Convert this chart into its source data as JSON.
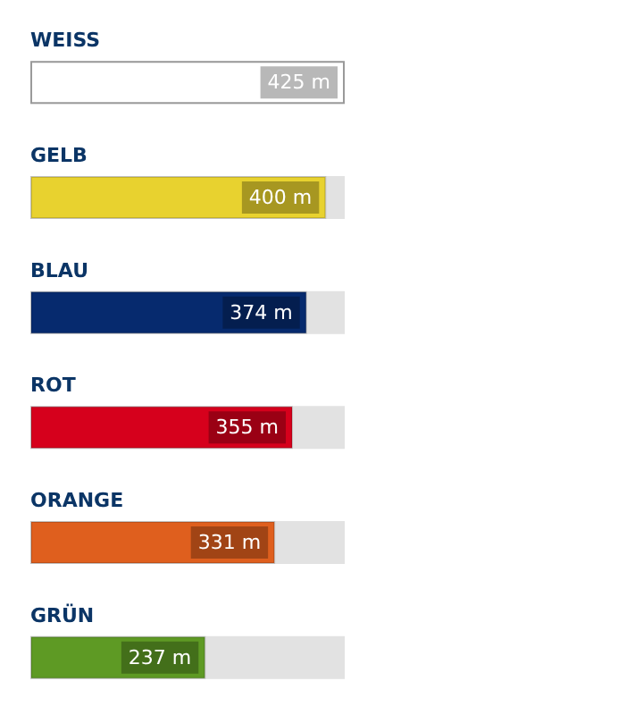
{
  "chart_data": {
    "type": "bar",
    "orientation": "horizontal",
    "categories": [
      "WEISS",
      "GELB",
      "BLAU",
      "ROT",
      "ORANGE",
      "GRÜN"
    ],
    "values": [
      425,
      400,
      374,
      355,
      331,
      237
    ],
    "colors": [
      "#ffffff",
      "#e8d22f",
      "#062a6e",
      "#d6001c",
      "#df5f1e",
      "#5e9a24"
    ],
    "value_labels": [
      "425 m",
      "400 m",
      "374 m",
      "355 m",
      "331 m",
      "237 m"
    ],
    "xlim": [
      0,
      425
    ],
    "tick_labels": false,
    "grid": false
  }
}
